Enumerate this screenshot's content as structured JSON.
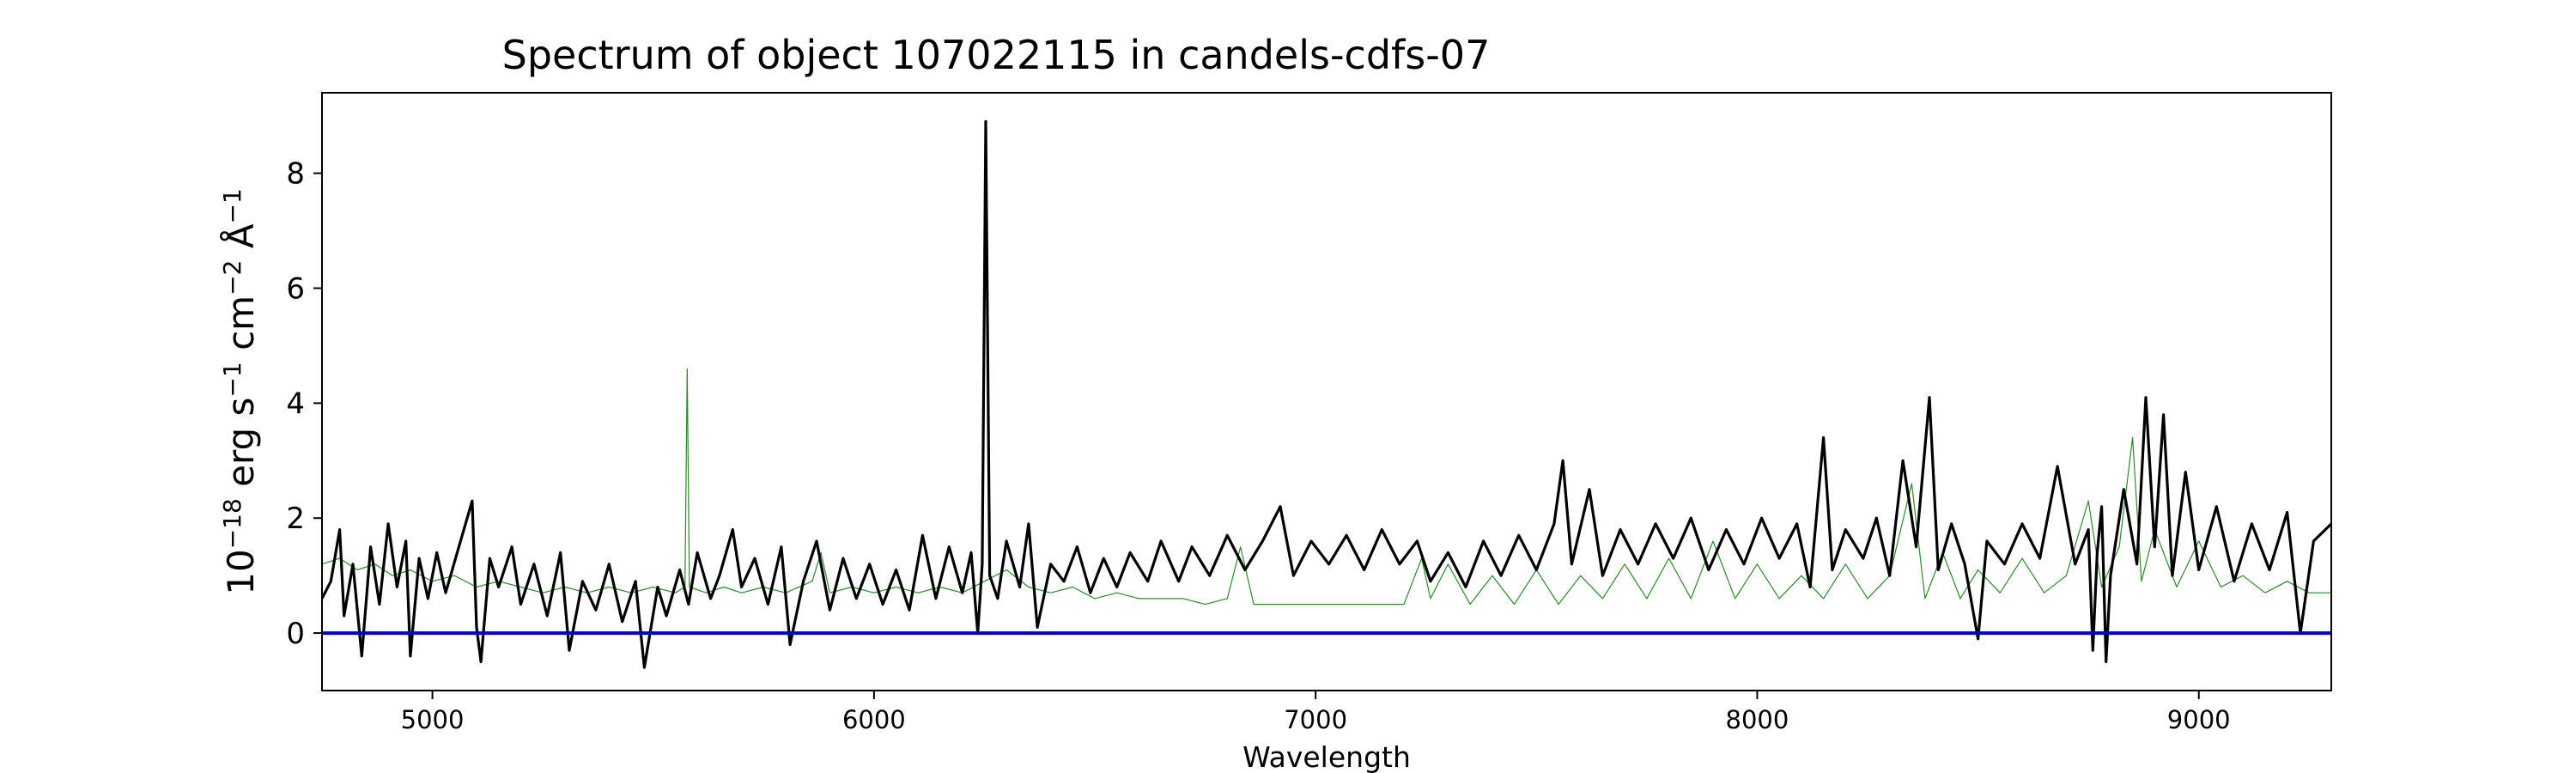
{
  "chart_data": {
    "type": "line",
    "title": "Spectrum of object 107022115 in candels-cdfs-07",
    "xlabel": "Wavelength",
    "ylabel_parts": {
      "base": "10",
      "exp1": "−18",
      "erg": " erg s",
      "exp2": "−1",
      "cm": " cm",
      "exp3": "−2",
      "ang": " Å",
      "exp4": "−1"
    },
    "xlim": [
      4750,
      9300
    ],
    "ylim": [
      -1.0,
      9.4
    ],
    "xticks": [
      5000,
      6000,
      7000,
      8000,
      9000
    ],
    "yticks": [
      0,
      2,
      4,
      6,
      8
    ],
    "grid": false,
    "series": [
      {
        "color": "#000000",
        "role": "flux",
        "points": [
          [
            4750,
            0.6
          ],
          [
            4770,
            0.9
          ],
          [
            4790,
            1.8
          ],
          [
            4800,
            0.3
          ],
          [
            4820,
            1.2
          ],
          [
            4840,
            -0.4
          ],
          [
            4860,
            1.5
          ],
          [
            4880,
            0.5
          ],
          [
            4900,
            1.9
          ],
          [
            4920,
            0.8
          ],
          [
            4940,
            1.6
          ],
          [
            4950,
            -0.4
          ],
          [
            4970,
            1.3
          ],
          [
            4990,
            0.6
          ],
          [
            5010,
            1.4
          ],
          [
            5030,
            0.7
          ],
          [
            5060,
            1.5
          ],
          [
            5090,
            2.3
          ],
          [
            5100,
            0.1
          ],
          [
            5110,
            -0.5
          ],
          [
            5130,
            1.3
          ],
          [
            5150,
            0.8
          ],
          [
            5180,
            1.5
          ],
          [
            5200,
            0.5
          ],
          [
            5230,
            1.2
          ],
          [
            5260,
            0.3
          ],
          [
            5290,
            1.4
          ],
          [
            5310,
            -0.3
          ],
          [
            5340,
            0.9
          ],
          [
            5370,
            0.4
          ],
          [
            5400,
            1.2
          ],
          [
            5430,
            0.2
          ],
          [
            5460,
            0.9
          ],
          [
            5480,
            -0.6
          ],
          [
            5510,
            0.8
          ],
          [
            5530,
            0.3
          ],
          [
            5560,
            1.1
          ],
          [
            5580,
            0.5
          ],
          [
            5600,
            1.4
          ],
          [
            5630,
            0.6
          ],
          [
            5650,
            1.0
          ],
          [
            5680,
            1.8
          ],
          [
            5700,
            0.8
          ],
          [
            5730,
            1.3
          ],
          [
            5760,
            0.5
          ],
          [
            5790,
            1.5
          ],
          [
            5810,
            -0.2
          ],
          [
            5840,
            0.9
          ],
          [
            5870,
            1.6
          ],
          [
            5900,
            0.4
          ],
          [
            5930,
            1.3
          ],
          [
            5960,
            0.6
          ],
          [
            5990,
            1.2
          ],
          [
            6020,
            0.5
          ],
          [
            6050,
            1.1
          ],
          [
            6080,
            0.4
          ],
          [
            6110,
            1.7
          ],
          [
            6140,
            0.6
          ],
          [
            6170,
            1.5
          ],
          [
            6200,
            0.7
          ],
          [
            6220,
            1.4
          ],
          [
            6235,
            0.0
          ],
          [
            6245,
            1.2
          ],
          [
            6253,
            8.9
          ],
          [
            6262,
            1.0
          ],
          [
            6280,
            0.6
          ],
          [
            6300,
            1.6
          ],
          [
            6330,
            0.8
          ],
          [
            6350,
            1.9
          ],
          [
            6370,
            0.1
          ],
          [
            6400,
            1.2
          ],
          [
            6430,
            0.9
          ],
          [
            6460,
            1.5
          ],
          [
            6490,
            0.7
          ],
          [
            6520,
            1.3
          ],
          [
            6550,
            0.8
          ],
          [
            6580,
            1.4
          ],
          [
            6620,
            0.9
          ],
          [
            6650,
            1.6
          ],
          [
            6690,
            0.9
          ],
          [
            6720,
            1.5
          ],
          [
            6760,
            1.0
          ],
          [
            6800,
            1.7
          ],
          [
            6840,
            1.1
          ],
          [
            6880,
            1.6
          ],
          [
            6920,
            2.2
          ],
          [
            6950,
            1.0
          ],
          [
            6990,
            1.6
          ],
          [
            7030,
            1.2
          ],
          [
            7070,
            1.7
          ],
          [
            7110,
            1.1
          ],
          [
            7150,
            1.8
          ],
          [
            7190,
            1.2
          ],
          [
            7230,
            1.6
          ],
          [
            7260,
            0.9
          ],
          [
            7300,
            1.4
          ],
          [
            7340,
            0.8
          ],
          [
            7380,
            1.6
          ],
          [
            7420,
            1.0
          ],
          [
            7460,
            1.7
          ],
          [
            7500,
            1.1
          ],
          [
            7540,
            1.9
          ],
          [
            7560,
            3.0
          ],
          [
            7580,
            1.2
          ],
          [
            7620,
            2.5
          ],
          [
            7650,
            1.0
          ],
          [
            7690,
            1.8
          ],
          [
            7730,
            1.2
          ],
          [
            7770,
            1.9
          ],
          [
            7810,
            1.3
          ],
          [
            7850,
            2.0
          ],
          [
            7890,
            1.1
          ],
          [
            7930,
            1.8
          ],
          [
            7970,
            1.2
          ],
          [
            8010,
            2.0
          ],
          [
            8050,
            1.3
          ],
          [
            8090,
            1.9
          ],
          [
            8120,
            0.8
          ],
          [
            8150,
            3.4
          ],
          [
            8170,
            1.1
          ],
          [
            8200,
            1.8
          ],
          [
            8240,
            1.3
          ],
          [
            8270,
            2.0
          ],
          [
            8300,
            1.0
          ],
          [
            8330,
            3.0
          ],
          [
            8360,
            1.5
          ],
          [
            8390,
            4.1
          ],
          [
            8410,
            1.1
          ],
          [
            8440,
            1.9
          ],
          [
            8470,
            1.2
          ],
          [
            8500,
            -0.1
          ],
          [
            8520,
            1.6
          ],
          [
            8560,
            1.2
          ],
          [
            8600,
            1.9
          ],
          [
            8640,
            1.3
          ],
          [
            8680,
            2.9
          ],
          [
            8720,
            1.2
          ],
          [
            8750,
            1.8
          ],
          [
            8760,
            -0.3
          ],
          [
            8770,
            1.4
          ],
          [
            8780,
            2.2
          ],
          [
            8790,
            -0.5
          ],
          [
            8800,
            1.0
          ],
          [
            8830,
            2.5
          ],
          [
            8860,
            1.2
          ],
          [
            8880,
            4.1
          ],
          [
            8900,
            1.5
          ],
          [
            8920,
            3.8
          ],
          [
            8940,
            1.0
          ],
          [
            8970,
            2.8
          ],
          [
            9000,
            1.1
          ],
          [
            9040,
            2.2
          ],
          [
            9080,
            0.9
          ],
          [
            9120,
            1.9
          ],
          [
            9160,
            1.1
          ],
          [
            9200,
            2.1
          ],
          [
            9230,
            0.0
          ],
          [
            9260,
            1.6
          ],
          [
            9300,
            1.9
          ]
        ]
      },
      {
        "color": "#2b8a2b",
        "role": "error",
        "points": [
          [
            4750,
            1.2
          ],
          [
            4790,
            1.3
          ],
          [
            4830,
            1.1
          ],
          [
            4870,
            1.2
          ],
          [
            4910,
            1.0
          ],
          [
            4950,
            1.1
          ],
          [
            5000,
            0.9
          ],
          [
            5050,
            1.0
          ],
          [
            5100,
            0.8
          ],
          [
            5150,
            0.9
          ],
          [
            5200,
            0.8
          ],
          [
            5250,
            0.7
          ],
          [
            5300,
            0.8
          ],
          [
            5350,
            0.7
          ],
          [
            5400,
            0.8
          ],
          [
            5450,
            0.7
          ],
          [
            5500,
            0.8
          ],
          [
            5550,
            0.7
          ],
          [
            5572,
            0.8
          ],
          [
            5577,
            4.6
          ],
          [
            5582,
            0.8
          ],
          [
            5620,
            0.7
          ],
          [
            5660,
            0.8
          ],
          [
            5700,
            0.7
          ],
          [
            5750,
            0.8
          ],
          [
            5800,
            0.7
          ],
          [
            5860,
            0.9
          ],
          [
            5880,
            1.4
          ],
          [
            5900,
            0.7
          ],
          [
            5950,
            0.8
          ],
          [
            6000,
            0.7
          ],
          [
            6050,
            0.8
          ],
          [
            6100,
            0.7
          ],
          [
            6150,
            0.8
          ],
          [
            6200,
            0.7
          ],
          [
            6250,
            0.9
          ],
          [
            6300,
            1.1
          ],
          [
            6350,
            0.8
          ],
          [
            6400,
            0.7
          ],
          [
            6450,
            0.8
          ],
          [
            6500,
            0.6
          ],
          [
            6550,
            0.7
          ],
          [
            6600,
            0.6
          ],
          [
            6650,
            0.6
          ],
          [
            6700,
            0.6
          ],
          [
            6750,
            0.5
          ],
          [
            6800,
            0.6
          ],
          [
            6830,
            1.5
          ],
          [
            6860,
            0.5
          ],
          [
            6900,
            0.5
          ],
          [
            6950,
            0.5
          ],
          [
            7000,
            0.5
          ],
          [
            7050,
            0.5
          ],
          [
            7100,
            0.5
          ],
          [
            7150,
            0.5
          ],
          [
            7200,
            0.5
          ],
          [
            7240,
            1.3
          ],
          [
            7260,
            0.6
          ],
          [
            7300,
            1.2
          ],
          [
            7350,
            0.5
          ],
          [
            7400,
            1.0
          ],
          [
            7450,
            0.5
          ],
          [
            7500,
            1.1
          ],
          [
            7550,
            0.5
          ],
          [
            7600,
            1.0
          ],
          [
            7650,
            0.6
          ],
          [
            7700,
            1.2
          ],
          [
            7750,
            0.6
          ],
          [
            7800,
            1.3
          ],
          [
            7850,
            0.6
          ],
          [
            7900,
            1.6
          ],
          [
            7950,
            0.6
          ],
          [
            8000,
            1.2
          ],
          [
            8050,
            0.6
          ],
          [
            8100,
            1.0
          ],
          [
            8150,
            0.6
          ],
          [
            8200,
            1.2
          ],
          [
            8250,
            0.6
          ],
          [
            8300,
            1.0
          ],
          [
            8350,
            2.6
          ],
          [
            8380,
            0.6
          ],
          [
            8420,
            1.4
          ],
          [
            8460,
            0.6
          ],
          [
            8500,
            1.1
          ],
          [
            8550,
            0.7
          ],
          [
            8600,
            1.3
          ],
          [
            8650,
            0.7
          ],
          [
            8700,
            1.0
          ],
          [
            8750,
            2.3
          ],
          [
            8780,
            0.8
          ],
          [
            8820,
            1.5
          ],
          [
            8850,
            3.4
          ],
          [
            8870,
            0.9
          ],
          [
            8900,
            1.8
          ],
          [
            8950,
            0.8
          ],
          [
            9000,
            1.6
          ],
          [
            9050,
            0.8
          ],
          [
            9100,
            1.0
          ],
          [
            9150,
            0.7
          ],
          [
            9200,
            0.9
          ],
          [
            9250,
            0.7
          ],
          [
            9300,
            0.7
          ]
        ]
      },
      {
        "color": "#0000cc",
        "role": "zero",
        "points": [
          [
            4750,
            0.0
          ],
          [
            9300,
            0.0
          ]
        ]
      }
    ]
  }
}
